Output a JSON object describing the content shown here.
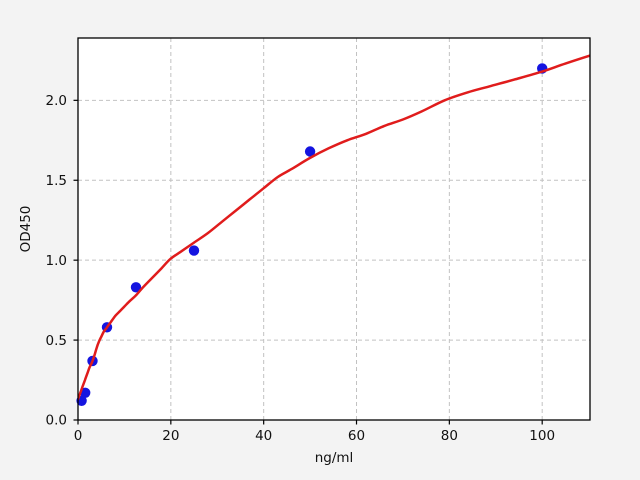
{
  "chart_data": {
    "type": "scatter",
    "title": "",
    "xlabel": "ng/ml",
    "ylabel": "OD450",
    "xlim": [
      0,
      110.3
    ],
    "ylim": [
      0,
      2.39
    ],
    "grid": true,
    "grid_style": "dashed",
    "legend": "none",
    "x_ticks": {
      "values": [
        0,
        20,
        40,
        60,
        80,
        100
      ],
      "labels": [
        "0",
        "20",
        "40",
        "60",
        "80",
        "100"
      ]
    },
    "y_ticks": {
      "values": [
        0,
        0.5,
        1.0,
        1.5,
        2.0
      ],
      "labels": [
        "0.0",
        "0.5",
        "1.0",
        "1.5",
        "2.0"
      ]
    },
    "series": [
      {
        "name": "standard-points",
        "type": "scatter",
        "marker": "circle",
        "color": "#1414e0",
        "points": [
          [
            0.78,
            0.12
          ],
          [
            1.56,
            0.17
          ],
          [
            3.12,
            0.37
          ],
          [
            6.25,
            0.58
          ],
          [
            12.5,
            0.83
          ],
          [
            25,
            1.06
          ],
          [
            50,
            1.68
          ],
          [
            100,
            2.2
          ]
        ]
      },
      {
        "name": "fit-curve",
        "type": "line",
        "color": "#e01c1c",
        "points": [
          [
            0,
            0.13
          ],
          [
            0.5,
            0.17
          ],
          [
            1,
            0.21
          ],
          [
            1.5,
            0.25
          ],
          [
            2,
            0.29
          ],
          [
            2.5,
            0.33
          ],
          [
            3,
            0.36
          ],
          [
            3.5,
            0.4
          ],
          [
            4,
            0.45
          ],
          [
            4.5,
            0.49
          ],
          [
            5,
            0.52
          ],
          [
            5.5,
            0.55
          ],
          [
            6,
            0.57
          ],
          [
            7,
            0.61
          ],
          [
            8,
            0.65
          ],
          [
            9,
            0.68
          ],
          [
            10,
            0.71
          ],
          [
            11,
            0.74
          ],
          [
            12.5,
            0.78
          ],
          [
            14,
            0.83
          ],
          [
            16,
            0.89
          ],
          [
            18,
            0.95
          ],
          [
            20,
            1.01
          ],
          [
            22,
            1.05
          ],
          [
            25,
            1.11
          ],
          [
            28,
            1.17
          ],
          [
            31,
            1.24
          ],
          [
            34,
            1.31
          ],
          [
            37,
            1.38
          ],
          [
            40,
            1.45
          ],
          [
            43,
            1.52
          ],
          [
            46,
            1.57
          ],
          [
            50,
            1.64
          ],
          [
            54,
            1.7
          ],
          [
            58,
            1.75
          ],
          [
            62,
            1.79
          ],
          [
            66,
            1.84
          ],
          [
            70,
            1.88
          ],
          [
            74,
            1.93
          ],
          [
            79,
            2.0
          ],
          [
            84,
            2.05
          ],
          [
            89,
            2.09
          ],
          [
            94,
            2.13
          ],
          [
            100,
            2.18
          ],
          [
            105,
            2.23
          ],
          [
            110.3,
            2.28
          ]
        ]
      }
    ],
    "colors": {
      "figure_bg": "#f3f3f3",
      "axes_bg": "#ffffff",
      "grid": "#c2c2c2",
      "spine": "#000000",
      "text": "#111111"
    }
  }
}
